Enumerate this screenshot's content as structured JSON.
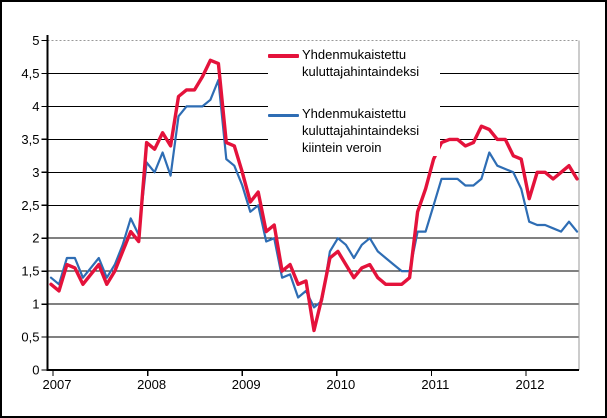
{
  "figure": {
    "background_color": "#ffffff",
    "border_color": "#000000"
  },
  "chart_data": {
    "type": "line",
    "title": "",
    "xlabel": "",
    "ylabel": "",
    "ylim": [
      0,
      5
    ],
    "y_tick_step": 0.5,
    "y_tick_values": [
      0,
      0.5,
      1,
      1.5,
      2,
      2.5,
      3,
      3.5,
      4,
      4.5,
      5
    ],
    "y_tick_labels": [
      "0",
      "0,5",
      "1",
      "1,5",
      "2",
      "2,5",
      "3",
      "3,5",
      "4",
      "4,5",
      "5"
    ],
    "x_tick_labels": [
      "2007",
      "2008",
      "2009",
      "2010",
      "2011",
      "2012"
    ],
    "grid": "horizontal solid black lines every 0.5; top line at 5 dotted grey",
    "legend_position": "inside top, left of center",
    "x_start": "2007-01",
    "x_end": "2012-07",
    "x_interval": "month",
    "n_points": 67,
    "x_months": [
      "2007-01",
      "2007-02",
      "2007-03",
      "2007-04",
      "2007-05",
      "2007-06",
      "2007-07",
      "2007-08",
      "2007-09",
      "2007-10",
      "2007-11",
      "2007-12",
      "2008-01",
      "2008-02",
      "2008-03",
      "2008-04",
      "2008-05",
      "2008-06",
      "2008-07",
      "2008-08",
      "2008-09",
      "2008-10",
      "2008-11",
      "2008-12",
      "2009-01",
      "2009-02",
      "2009-03",
      "2009-04",
      "2009-05",
      "2009-06",
      "2009-07",
      "2009-08",
      "2009-09",
      "2009-10",
      "2009-11",
      "2009-12",
      "2010-01",
      "2010-02",
      "2010-03",
      "2010-04",
      "2010-05",
      "2010-06",
      "2010-07",
      "2010-08",
      "2010-09",
      "2010-10",
      "2010-11",
      "2010-12",
      "2011-01",
      "2011-02",
      "2011-03",
      "2011-04",
      "2011-05",
      "2011-06",
      "2011-07",
      "2011-08",
      "2011-09",
      "2011-10",
      "2011-11",
      "2011-12",
      "2012-01",
      "2012-02",
      "2012-03",
      "2012-04",
      "2012-05",
      "2012-06",
      "2012-07"
    ],
    "series": [
      {
        "name": "Yhdenmukaistettu kuluttajahintaindeksi",
        "color": "#e4123b",
        "line_width": 3.4,
        "values": [
          1.3,
          1.2,
          1.6,
          1.55,
          1.3,
          1.45,
          1.6,
          1.3,
          1.5,
          1.8,
          2.1,
          1.95,
          3.45,
          3.35,
          3.6,
          3.4,
          4.15,
          4.25,
          4.25,
          4.45,
          4.7,
          4.65,
          3.45,
          3.4,
          3.0,
          2.55,
          2.7,
          2.1,
          2.2,
          1.5,
          1.6,
          1.3,
          1.35,
          0.6,
          1.1,
          1.7,
          1.8,
          1.6,
          1.4,
          1.55,
          1.6,
          1.4,
          1.3,
          1.3,
          1.3,
          1.4,
          2.4,
          2.75,
          3.2,
          3.45,
          3.5,
          3.5,
          3.4,
          3.45,
          3.7,
          3.65,
          3.5,
          3.5,
          3.25,
          3.2,
          2.6,
          3.0,
          3.0,
          2.9,
          3.0,
          3.1,
          2.9
        ]
      },
      {
        "name": "Yhdenmukaistettu kuluttajahintaindeksi kiintein veroin",
        "color": "#2e6db4",
        "line_width": 2.2,
        "values": [
          1.4,
          1.3,
          1.7,
          1.7,
          1.4,
          1.55,
          1.7,
          1.4,
          1.6,
          1.9,
          2.3,
          2.05,
          3.15,
          3.0,
          3.3,
          2.95,
          3.85,
          4.0,
          4.0,
          4.0,
          4.1,
          4.4,
          3.2,
          3.1,
          2.8,
          2.4,
          2.5,
          1.95,
          2.0,
          1.4,
          1.45,
          1.1,
          1.2,
          0.95,
          1.05,
          1.8,
          2.0,
          1.9,
          1.7,
          1.9,
          2.0,
          1.8,
          1.7,
          1.6,
          1.5,
          1.5,
          2.1,
          2.1,
          2.5,
          2.9,
          2.9,
          2.9,
          2.8,
          2.8,
          2.9,
          3.3,
          3.1,
          3.05,
          3.0,
          2.75,
          2.25,
          2.2,
          2.2,
          2.15,
          2.1,
          2.25,
          2.1
        ]
      }
    ]
  },
  "colors": {
    "grid_line": "#000000",
    "top_grid_dotted": "#999999",
    "right_border": "#999999",
    "axis": "#000000"
  }
}
